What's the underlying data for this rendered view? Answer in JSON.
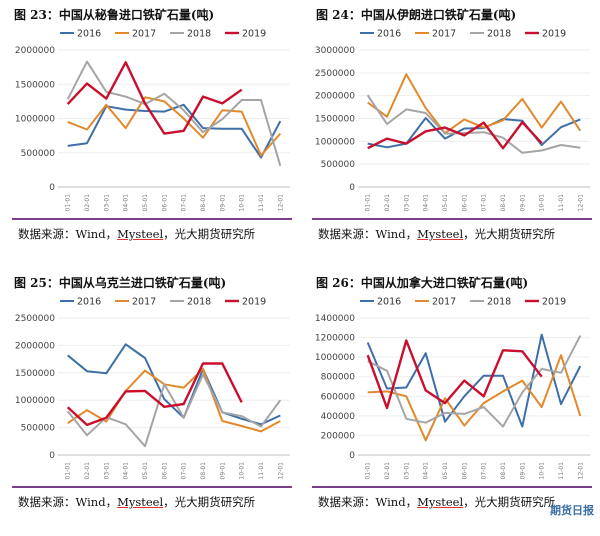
{
  "colors": {
    "2016": "#3e6fa8",
    "2017": "#e08a2c",
    "2018": "#a5a5a5",
    "2019": "#c8102e",
    "rule": "#7b3f8c"
  },
  "watermark": "期货日报",
  "panels": [
    {
      "title": "图 23：中国从秘鲁进口铁矿石量(吨)",
      "source_prefix": "数据来源：Wind，",
      "source_name": "Mysteel",
      "source_suffix": "，光大期货研究所",
      "chart_data": {
        "type": "line",
        "categories": [
          "01-01",
          "02-01",
          "03-01",
          "04-01",
          "05-01",
          "06-01",
          "07-01",
          "08-01",
          "09-01",
          "10-01",
          "11-01",
          "12-01"
        ],
        "ylim": [
          0,
          2000000
        ],
        "yticks": [
          "0",
          "500000",
          "1000000",
          "1500000",
          "2000000"
        ],
        "series": [
          {
            "name": "2016",
            "values": [
              600000,
              640000,
              1180000,
              1130000,
              1110000,
              1100000,
              1200000,
              860000,
              850000,
              850000,
              430000,
              960000
            ]
          },
          {
            "name": "2017",
            "values": [
              950000,
              840000,
              1200000,
              860000,
              1310000,
              1250000,
              1000000,
              720000,
              1120000,
              1100000,
              460000,
              780000
            ]
          },
          {
            "name": "2018",
            "values": [
              1280000,
              1830000,
              1390000,
              1320000,
              1210000,
              1360000,
              1120000,
              800000,
              990000,
              1270000,
              1270000,
              310000
            ]
          },
          {
            "name": "2019",
            "values": [
              1210000,
              1510000,
              1290000,
              1820000,
              1220000,
              780000,
              820000,
              1320000,
              1220000,
              1420000,
              null,
              null
            ]
          }
        ]
      }
    },
    {
      "title": "图 24：中国从伊朗进口铁矿石量(吨)",
      "source_prefix": "数据来源：Wind，",
      "source_name": "Mysteel",
      "source_suffix": "，光大期货研究所",
      "chart_data": {
        "type": "line",
        "categories": [
          "01-01",
          "02-01",
          "03-01",
          "04-01",
          "05-01",
          "06-01",
          "07-01",
          "08-01",
          "09-01",
          "10-01",
          "11-01",
          "12-01"
        ],
        "ylim": [
          0,
          3000000
        ],
        "yticks": [
          "0",
          "500000",
          "1000000",
          "1500000",
          "2000000",
          "2500000",
          "3000000"
        ],
        "series": [
          {
            "name": "2016",
            "values": [
              950000,
              870000,
              950000,
              1510000,
              1060000,
              1280000,
              1290000,
              1490000,
              1450000,
              920000,
              1310000,
              1480000
            ]
          },
          {
            "name": "2017",
            "values": [
              1850000,
              1540000,
              2470000,
              1730000,
              1180000,
              1480000,
              1300000,
              1460000,
              1930000,
              1300000,
              1870000,
              1230000
            ]
          },
          {
            "name": "2018",
            "values": [
              2010000,
              1380000,
              1700000,
              1620000,
              1170000,
              1180000,
              1200000,
              1080000,
              750000,
              800000,
              920000,
              860000
            ]
          },
          {
            "name": "2019",
            "values": [
              850000,
              1060000,
              950000,
              1220000,
              1300000,
              1130000,
              1410000,
              850000,
              1420000,
              960000,
              null,
              null
            ]
          }
        ]
      }
    },
    {
      "title": "图 25：中国从乌克兰进口铁矿石量(吨)",
      "source_prefix": "数据来源：Wind，",
      "source_name": "Mysteel",
      "source_suffix": "，光大期货研究所",
      "chart_data": {
        "type": "line",
        "categories": [
          "01-01",
          "02-01",
          "03-01",
          "04-01",
          "05-01",
          "06-01",
          "07-01",
          "08-01",
          "09-01",
          "10-01",
          "11-01",
          "12-01"
        ],
        "ylim": [
          0,
          2500000
        ],
        "yticks": [
          "0",
          "500000",
          "1000000",
          "1500000",
          "2000000",
          "2500000"
        ],
        "series": [
          {
            "name": "2016",
            "values": [
              1820000,
              1530000,
              1490000,
              2020000,
              1770000,
              1020000,
              680000,
              1570000,
              780000,
              660000,
              560000,
              720000
            ]
          },
          {
            "name": "2017",
            "values": [
              580000,
              820000,
              610000,
              1170000,
              1540000,
              1290000,
              1230000,
              1570000,
              620000,
              530000,
              430000,
              620000
            ]
          },
          {
            "name": "2018",
            "values": [
              800000,
              360000,
              690000,
              560000,
              160000,
              1290000,
              680000,
              1470000,
              780000,
              710000,
              520000,
              1000000
            ]
          },
          {
            "name": "2019",
            "values": [
              870000,
              550000,
              680000,
              1160000,
              1170000,
              880000,
              930000,
              1670000,
              1670000,
              960000,
              null,
              null
            ]
          }
        ]
      }
    },
    {
      "title": "图 26：中国从加拿大进口铁矿石量(吨)",
      "source_prefix": "数据来源：Wind，",
      "source_name": "Mysteel",
      "source_suffix": "，光大期货研究所",
      "chart_data": {
        "type": "line",
        "categories": [
          "01-01",
          "02-01",
          "03-01",
          "04-01",
          "05-01",
          "06-01",
          "07-01",
          "08-01",
          "09-01",
          "10-01",
          "11-01",
          "12-01"
        ],
        "ylim": [
          0,
          1400000
        ],
        "yticks": [
          "0",
          "200000",
          "400000",
          "600000",
          "800000",
          "1000000",
          "1200000",
          "1400000"
        ],
        "series": [
          {
            "name": "2016",
            "values": [
              1150000,
              680000,
              690000,
              1040000,
              340000,
              600000,
              810000,
              810000,
              290000,
              1230000,
              520000,
              910000
            ]
          },
          {
            "name": "2017",
            "values": [
              640000,
              650000,
              600000,
              150000,
              580000,
              300000,
              530000,
              650000,
              760000,
              490000,
              1020000,
              400000
            ]
          },
          {
            "name": "2018",
            "values": [
              960000,
              860000,
              370000,
              330000,
              430000,
              420000,
              490000,
              290000,
              640000,
              880000,
              840000,
              1220000
            ]
          },
          {
            "name": "2019",
            "values": [
              1020000,
              480000,
              1170000,
              660000,
              530000,
              760000,
              600000,
              1070000,
              1060000,
              800000,
              null,
              null
            ]
          }
        ]
      }
    }
  ]
}
